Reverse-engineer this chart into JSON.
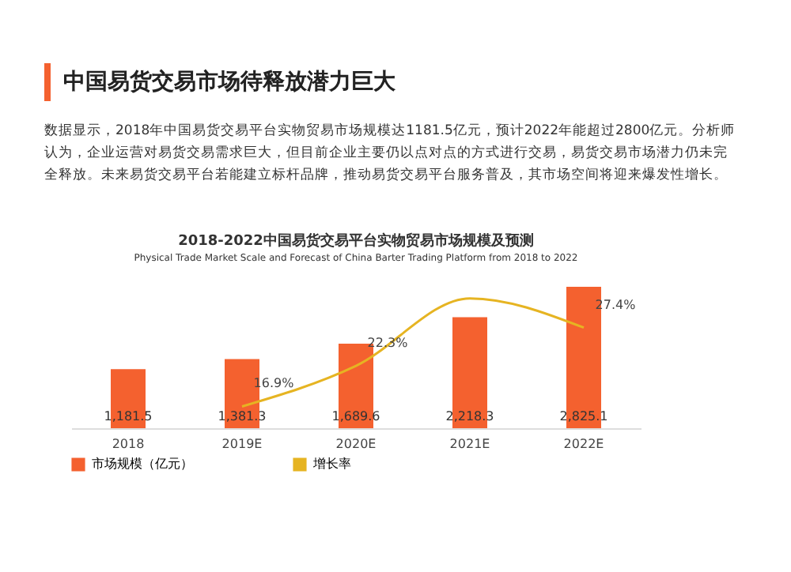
{
  "chart_data": {
    "type": "bar",
    "title": "中国易货交易市场待释放潜力巨大",
    "subtitle": "2018-2022中国易货交易平台实物贸易市场规模及预测",
    "annotations": [
      "数据显示，2018年中国易货交易平台实物贸易市场规模达1181.5亿元，预计2022年能超过2800亿元。分析师认为，企业运营对易货交易需求巨大，但目前企业主要仍以点对点的方式进行交易，易货交易市场潜力仍未完全释放。未来易货交易平台若能建立标杆品牌，推动易货交易平台服务普及，其市场空间将迎来爆发性增长。",
      "Physical Trade Market Scale and Forecast of China Barter Trading Platform from 2018 to 2022"
    ],
    "categories": [
      "2018",
      "2019E",
      "2020E",
      "2021E",
      "2022E"
    ],
    "series": [
      {
        "name": "市场规模（亿元）",
        "color": "#f4612f",
        "values": [
          1181.5,
          1381.3,
          1689.6,
          2218.3,
          2825.1
        ],
        "value_labels": [
          "1,181.5",
          "1,381.3",
          "1,689.6",
          "2,218.3",
          "2,825.1"
        ]
      },
      {
        "name": "增长率",
        "type": "line",
        "axis": "y2",
        "color": "#e6b422",
        "values": [
          null,
          16.9,
          22.3,
          31.3,
          27.4
        ],
        "value_labels": [
          null,
          "16.9%",
          "22.3%",
          null,
          "27.4%"
        ]
      }
    ],
    "legend": "bottom",
    "marker": "none",
    "line_style": "solid"
  }
}
